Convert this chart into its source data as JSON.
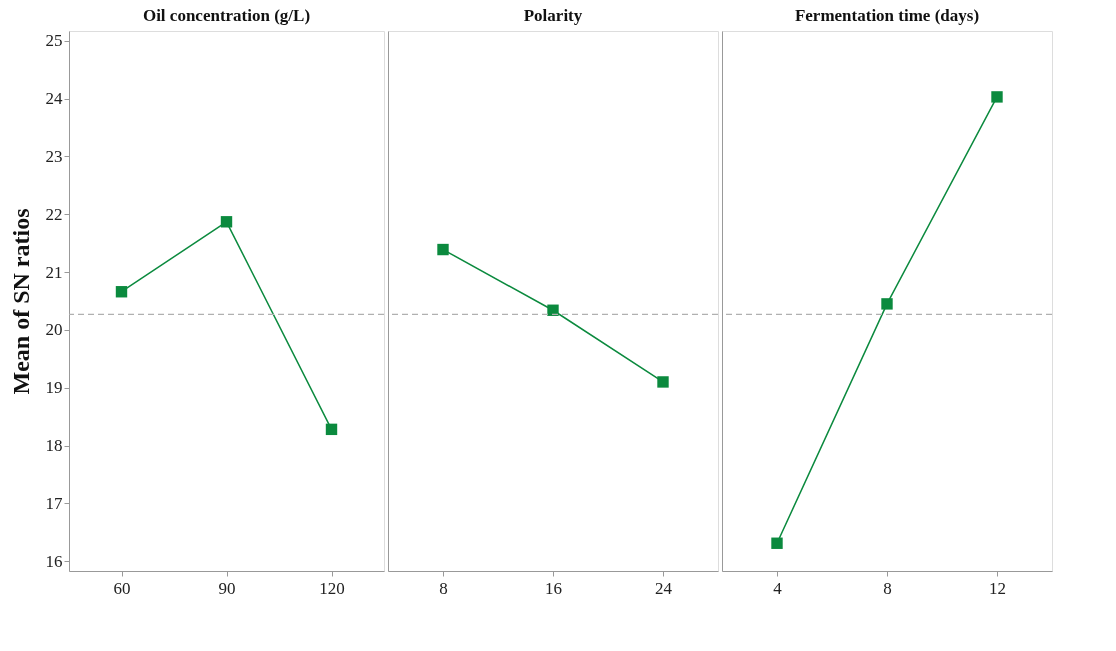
{
  "chart_data": [
    {
      "type": "line",
      "title": "Oil concentration (g/L)",
      "ylabel": "Mean of SN ratios",
      "categories": [
        "60",
        "90",
        "120"
      ],
      "series": [
        {
          "color": "#0b8a3e",
          "values": [
            20.66,
            21.87,
            18.28
          ]
        }
      ],
      "ylim": [
        15.83,
        25.17
      ],
      "yticks": [
        16,
        17,
        18,
        19,
        20,
        21,
        22,
        23,
        24,
        25
      ],
      "marker": "square",
      "line_style": "solid",
      "ref_lines": [
        {
          "axis": "y",
          "value": 20.27,
          "color": "#b0b0b0",
          "line_style": "dashed"
        }
      ]
    },
    {
      "type": "line",
      "title": "Polarity",
      "categories": [
        "8",
        "16",
        "24"
      ],
      "series": [
        {
          "color": "#0b8a3e",
          "values": [
            21.39,
            20.34,
            19.1
          ]
        }
      ],
      "ylim": [
        15.83,
        25.17
      ],
      "tick_labels": "x",
      "marker": "square",
      "line_style": "solid",
      "ref_lines": [
        {
          "axis": "y",
          "value": 20.27,
          "color": "#b0b0b0",
          "line_style": "dashed"
        }
      ]
    },
    {
      "type": "line",
      "title": "Fermentation time (days)",
      "categories": [
        "4",
        "8",
        "12"
      ],
      "series": [
        {
          "color": "#0b8a3e",
          "values": [
            16.31,
            20.45,
            24.03
          ]
        }
      ],
      "ylim": [
        15.83,
        25.17
      ],
      "tick_labels": "x",
      "marker": "square",
      "line_style": "solid",
      "ref_lines": [
        {
          "axis": "y",
          "value": 20.27,
          "color": "#b0b0b0",
          "line_style": "dashed"
        }
      ]
    }
  ]
}
